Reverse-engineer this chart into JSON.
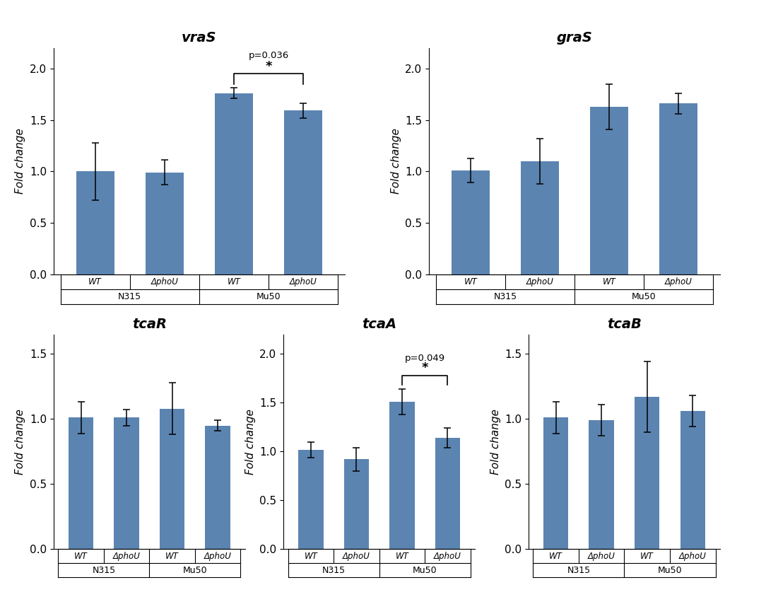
{
  "plots": [
    {
      "title": "vraS",
      "row": 0,
      "col": 0,
      "ylim": [
        0,
        2.2
      ],
      "yticks": [
        0,
        0.5,
        1,
        1.5,
        2
      ],
      "values": [
        1.0,
        0.99,
        1.76,
        1.59
      ],
      "errors": [
        0.28,
        0.12,
        0.05,
        0.07
      ],
      "sig_pair": [
        2,
        3
      ],
      "sig_label": "p=0.036",
      "has_sig": true
    },
    {
      "title": "graS",
      "row": 0,
      "col": 1,
      "ylim": [
        0,
        2.2
      ],
      "yticks": [
        0,
        0.5,
        1,
        1.5,
        2
      ],
      "values": [
        1.01,
        1.1,
        1.63,
        1.66
      ],
      "errors": [
        0.12,
        0.22,
        0.22,
        0.1
      ],
      "sig_pair": null,
      "sig_label": null,
      "has_sig": false
    },
    {
      "title": "tcaR",
      "row": 1,
      "col": 0,
      "ylim": [
        0,
        1.65
      ],
      "yticks": [
        0,
        0.5,
        1,
        1.5
      ],
      "values": [
        1.01,
        1.01,
        1.08,
        0.95
      ],
      "errors": [
        0.12,
        0.06,
        0.2,
        0.04
      ],
      "sig_pair": null,
      "sig_label": null,
      "has_sig": false
    },
    {
      "title": "tcaA",
      "row": 1,
      "col": 1,
      "ylim": [
        0,
        2.2
      ],
      "yticks": [
        0,
        0.5,
        1,
        1.5,
        2
      ],
      "values": [
        1.02,
        0.92,
        1.51,
        1.14
      ],
      "errors": [
        0.08,
        0.12,
        0.13,
        0.1
      ],
      "sig_pair": [
        2,
        3
      ],
      "sig_label": "p=0.049",
      "has_sig": true
    },
    {
      "title": "tcaB",
      "row": 1,
      "col": 2,
      "ylim": [
        0,
        1.65
      ],
      "yticks": [
        0,
        0.5,
        1,
        1.5
      ],
      "values": [
        1.01,
        0.99,
        1.17,
        1.06
      ],
      "errors": [
        0.12,
        0.12,
        0.27,
        0.12
      ],
      "sig_pair": null,
      "sig_label": null,
      "has_sig": false
    }
  ],
  "bar_color": "#5b84b1",
  "bar_width": 0.55,
  "xlabel_groups": [
    "N315",
    "Mu50"
  ],
  "xlabel_items": [
    "WT",
    "ΔphoU",
    "WT",
    "ΔphoU"
  ],
  "ylabel": "Fold change",
  "background_color": "#ffffff"
}
